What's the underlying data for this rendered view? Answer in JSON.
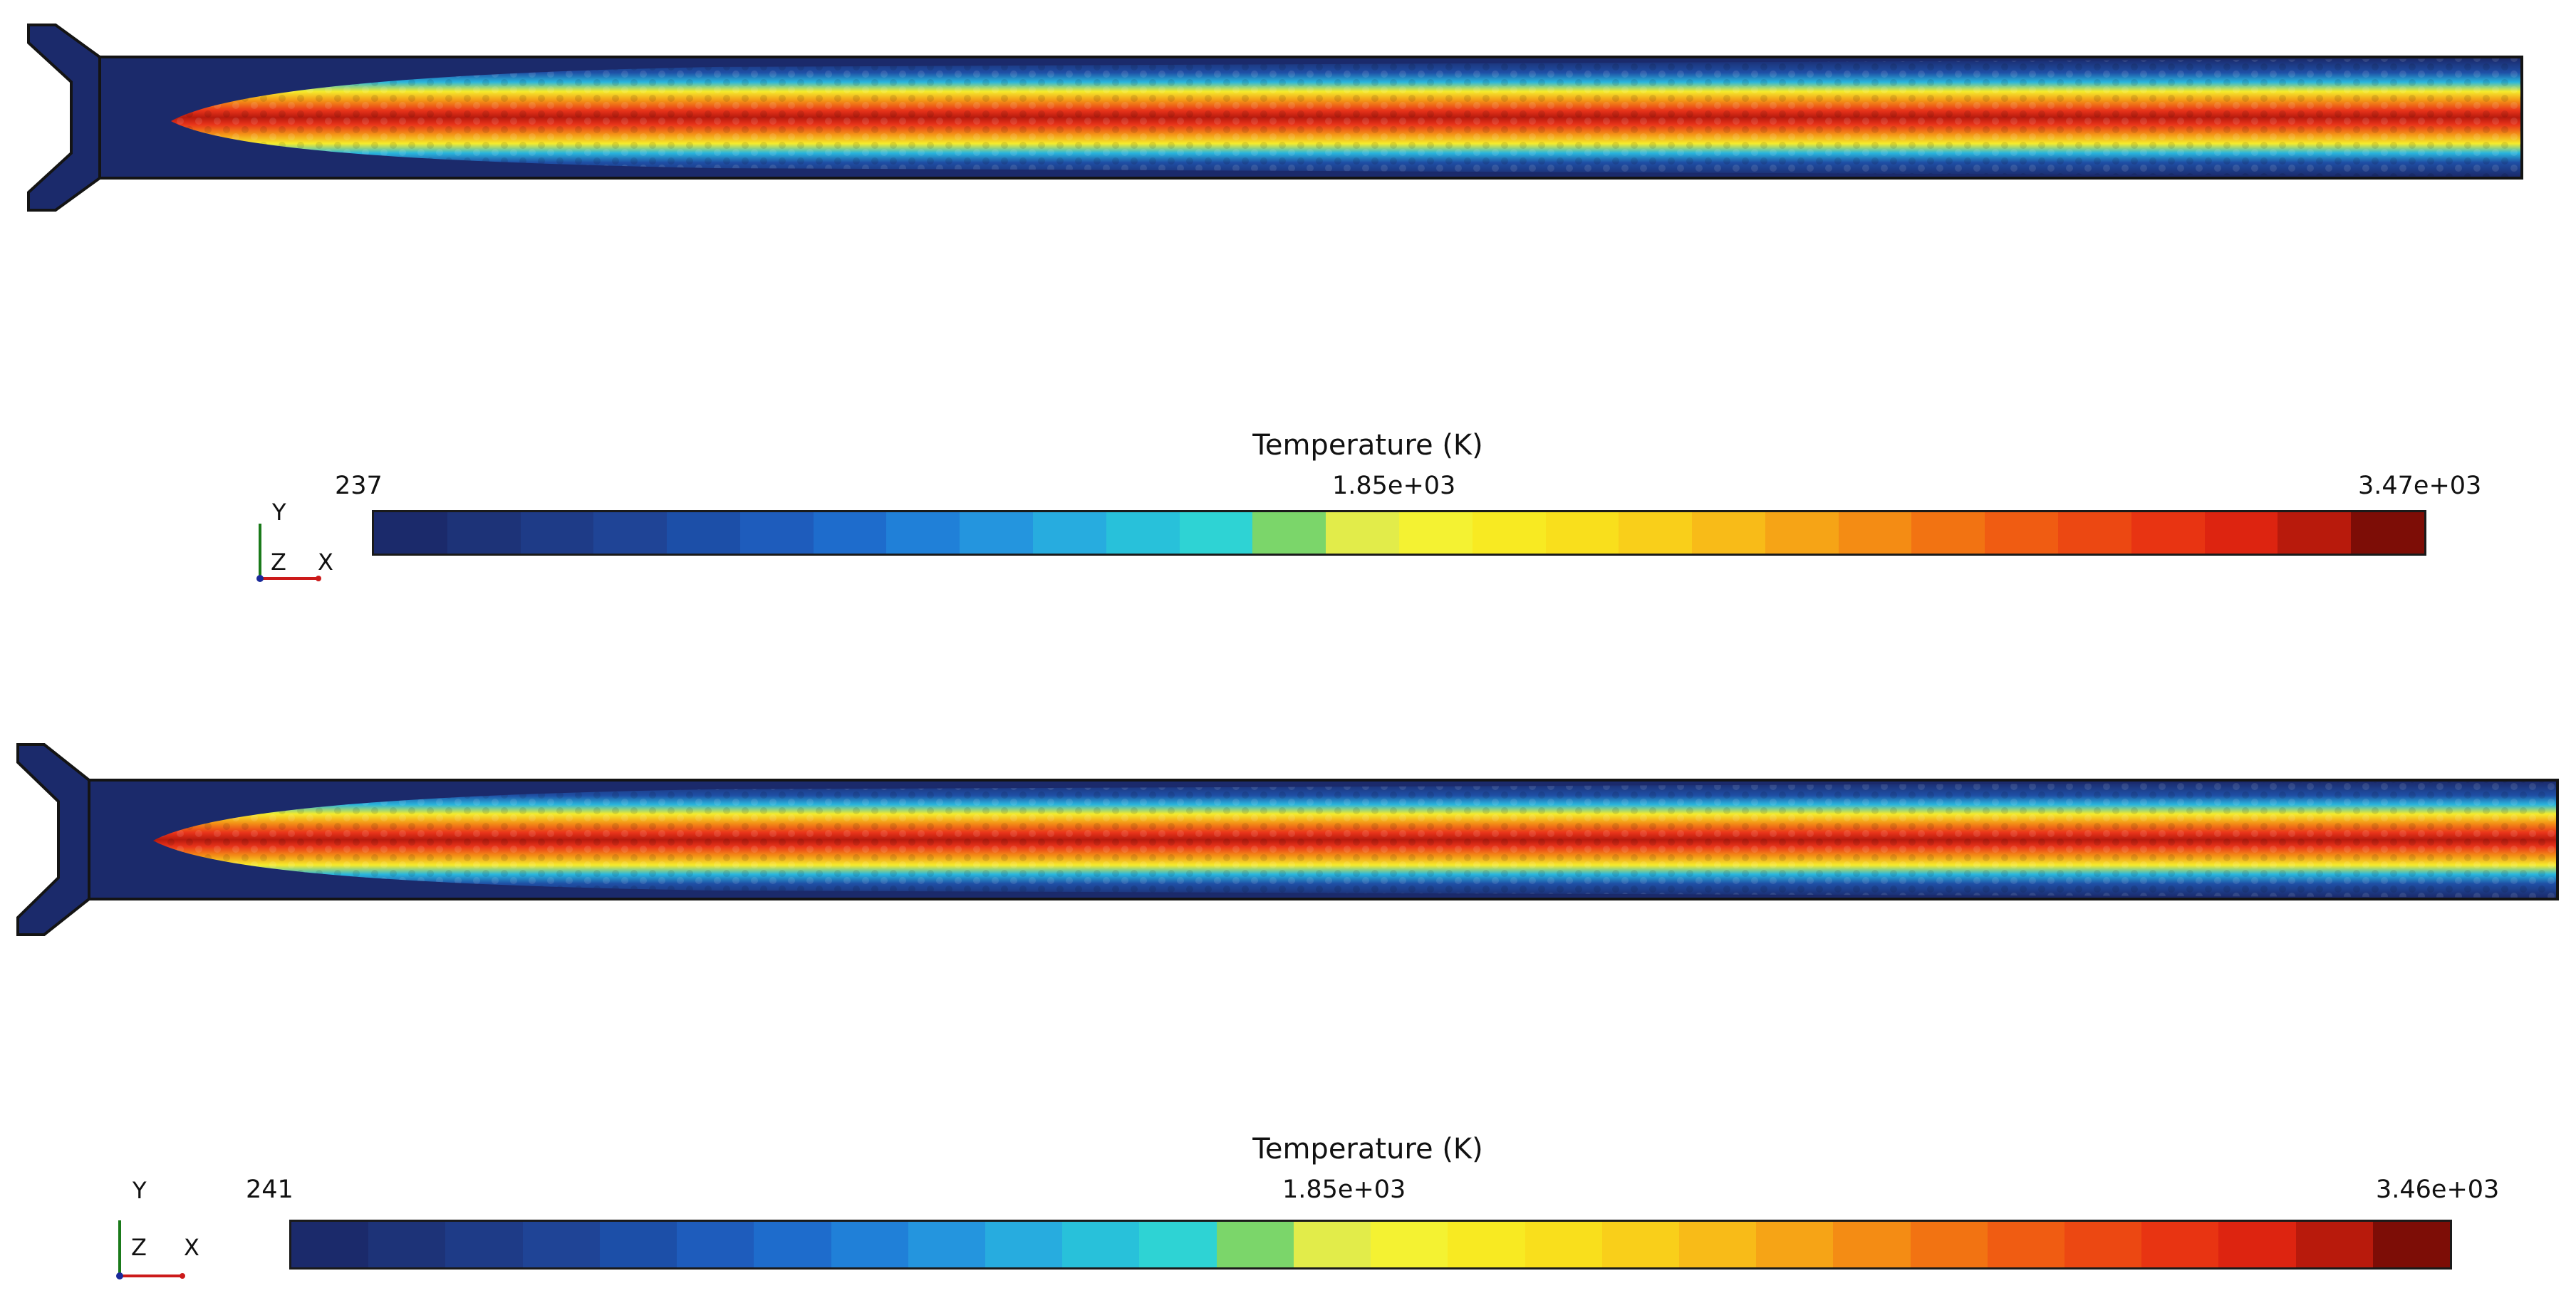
{
  "panels": [
    {
      "id": "top",
      "colorbar": {
        "title": "Temperature (K)",
        "min_label": "237",
        "mid_label": "1.85e+03",
        "max_label": "3.47e+03"
      },
      "axis": {
        "y": "Y",
        "z": "Z",
        "x": "X"
      }
    },
    {
      "id": "bottom",
      "colorbar": {
        "title": "Temperature (K)",
        "min_label": "241",
        "mid_label": "1.85e+03",
        "max_label": "3.46e+03"
      },
      "axis": {
        "y": "Y",
        "z": "Z",
        "x": "X"
      }
    }
  ],
  "colormap": [
    "#1b2a6b",
    "#1d3378",
    "#1e3b87",
    "#1f4496",
    "#1c4fa8",
    "#1e5cbc",
    "#1e6ccc",
    "#2080d8",
    "#2495de",
    "#27acdf",
    "#28c1da",
    "#2ed3d4",
    "#7bd66a",
    "#e2ec4a",
    "#f4f232",
    "#f8ea22",
    "#f9df1c",
    "#f9cf1a",
    "#f8bb18",
    "#f6a416",
    "#f48c14",
    "#f27312",
    "#f05c12",
    "#ec4812",
    "#e83412",
    "#dd2410",
    "#b81a0c",
    "#7d0d06"
  ],
  "colors": {
    "domain_bg": "#1b2a6b",
    "border": "#141414"
  }
}
